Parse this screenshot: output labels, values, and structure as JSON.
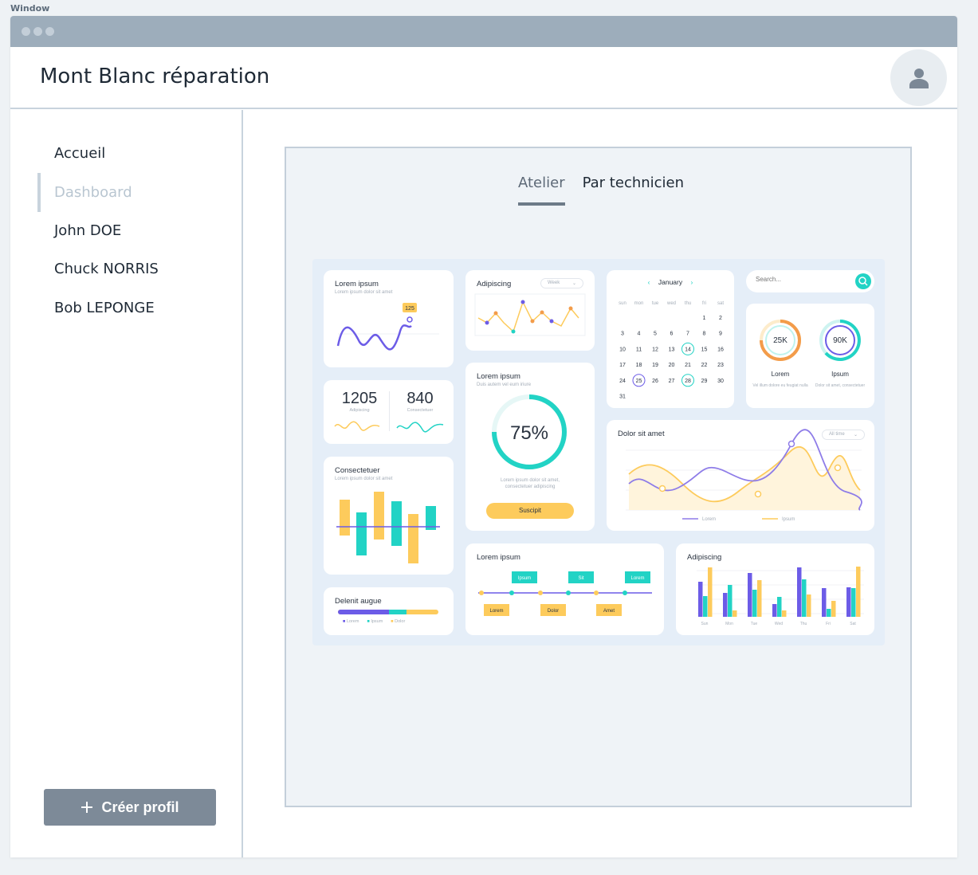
{
  "window_label": "Window",
  "app": {
    "title": "Mont Blanc réparation"
  },
  "nav": {
    "items": [
      {
        "label": "Accueil"
      },
      {
        "label": "Dashboard"
      },
      {
        "label": "John DOE"
      },
      {
        "label": "Chuck NORRIS"
      },
      {
        "label": "Bob LEPONGE"
      }
    ],
    "active_index": 1,
    "create_button": "Créer profil"
  },
  "tabs": [
    {
      "label": "Atelier"
    },
    {
      "label": "Par technicien"
    }
  ],
  "active_tab": 0,
  "dashboard": {
    "card_line": {
      "title": "Lorem ipsum",
      "sub": "Lorem ipsum dolor sit amet",
      "badge": "125"
    },
    "card_zigzag": {
      "title": "Adipiscing",
      "dropdown": "Week"
    },
    "calendar": {
      "month": "January",
      "weekdays": [
        "sun",
        "mon",
        "tue",
        "wed",
        "thu",
        "fri",
        "sat"
      ],
      "days": [
        "1",
        "2",
        "3",
        "4",
        "5",
        "6",
        "7",
        "8",
        "9",
        "10",
        "11",
        "12",
        "13",
        "14",
        "15",
        "16",
        "17",
        "18",
        "19",
        "20",
        "21",
        "22",
        "23",
        "24",
        "25",
        "26",
        "27",
        "28",
        "29",
        "30",
        "31"
      ],
      "highlighted": [
        "14",
        "25",
        "28"
      ]
    },
    "search": {
      "placeholder": "Search..."
    },
    "rings": [
      {
        "value": "25K",
        "label": "Lorem",
        "sub": "Vel illum dolore eu feugiat nulla"
      },
      {
        "value": "90K",
        "label": "Ipsum",
        "sub": "Dolor sit amet, consectetuer"
      }
    ],
    "stats": [
      {
        "value": "1205",
        "label": "Adipiscing"
      },
      {
        "value": "840",
        "label": "Consectetuer"
      }
    ],
    "gauge": {
      "title": "Lorem ipsum",
      "sub": "Duis autem vel eum iriure",
      "value": "75%",
      "text": "Lorem ipsum dolor sit amet, consectetuer adipiscing",
      "button": "Suscipit"
    },
    "card_area": {
      "title": "Dolor sit amet",
      "dropdown": "All time",
      "legend": [
        "Lorem",
        "Ipsum"
      ]
    },
    "card_bars": {
      "title": "Consectetuer",
      "sub": "Lorem ipsum dolor sit amet"
    },
    "card_progress": {
      "title": "Delenit augue",
      "legend": [
        "Lorem",
        "Ipsum",
        "Dolor"
      ]
    },
    "timeline": {
      "title": "Lorem ipsum",
      "top_tags": [
        "Ipsum",
        "Sit",
        "Lorem"
      ],
      "bottom_tags": [
        "Lorem",
        "Dolor",
        "Amet"
      ]
    },
    "grouped_bars": {
      "title": "Adipiscing",
      "days": [
        "Sun",
        "Mon",
        "Tue",
        "Wed",
        "Thu",
        "Fri",
        "Sat"
      ]
    }
  },
  "colors": {
    "purple": "#6c5ce7",
    "teal": "#22d3c5",
    "yellow": "#fdcb5c",
    "accent_nav": "#c8d3dd"
  }
}
